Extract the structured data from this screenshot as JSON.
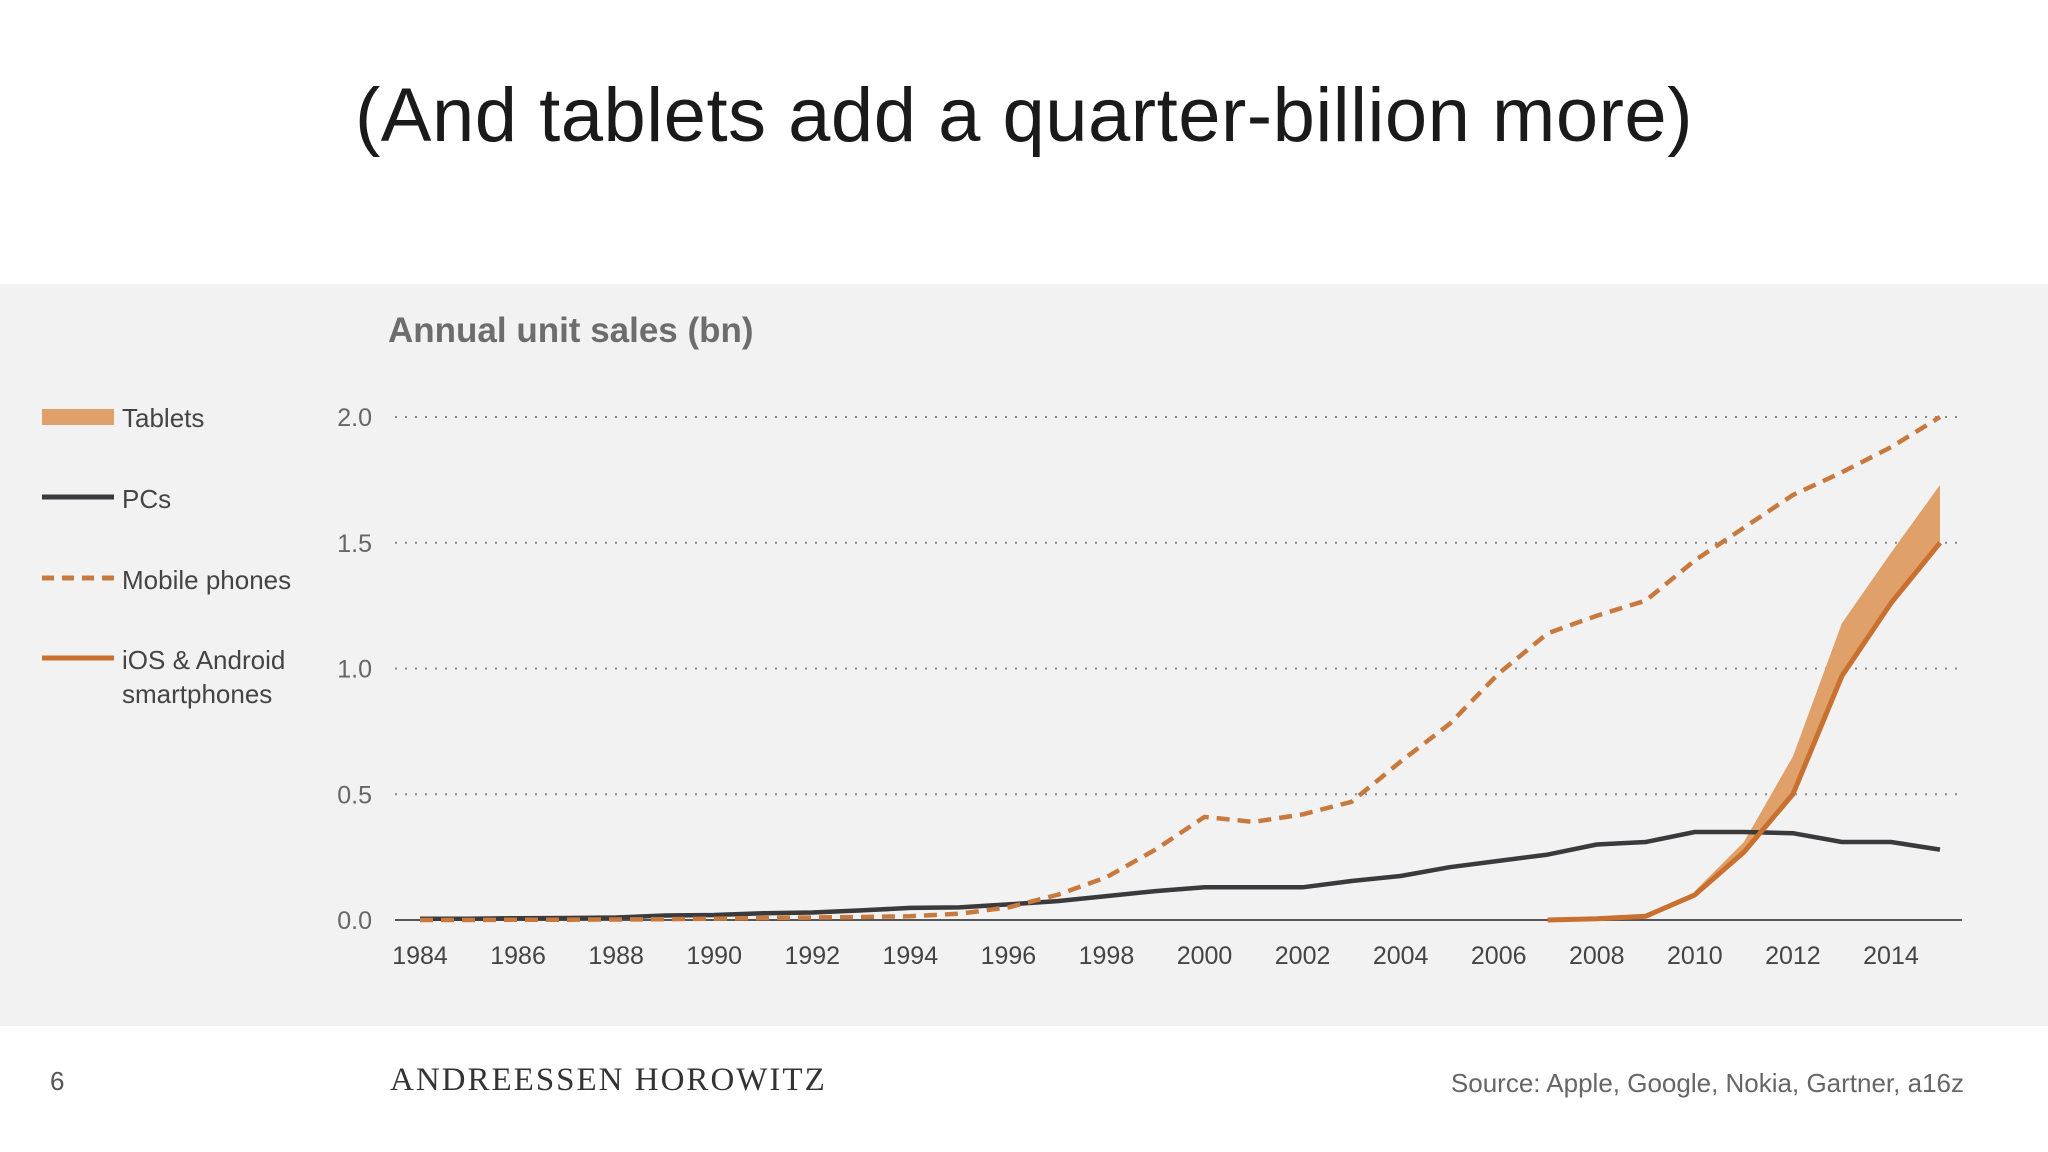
{
  "slide": {
    "title": "(And tablets add a quarter-billion more)",
    "page_number": "6",
    "brand": "ANDREESSEN HOROWITZ",
    "source": "Source: Apple, Google, Nokia, Gartner, a16z"
  },
  "legend": [
    {
      "label": "Tablets",
      "style": "band"
    },
    {
      "label": "PCs",
      "style": "solid"
    },
    {
      "label": "Mobile phones",
      "style": "dashed"
    },
    {
      "label_line1": "iOS & Android",
      "label_line2": "smartphones",
      "style": "solid"
    }
  ],
  "colors": {
    "panel_bg": "#f3f2f2",
    "tablets": "#e0a06a",
    "pcs": "#3a3a3c",
    "mobile": "#c87a3e",
    "smartphones": "#c8702f",
    "grid": "#888888",
    "text": "#444444",
    "title_gray": "#6d6d6d"
  },
  "chart_data": {
    "type": "line",
    "title": "Annual unit sales (bn)",
    "xlabel": "",
    "ylabel": "",
    "xlim": [
      1984,
      2015
    ],
    "ylim": [
      0,
      2.0
    ],
    "yticks": [
      0.0,
      0.5,
      1.0,
      1.5,
      2.0
    ],
    "xticks": [
      1984,
      1986,
      1988,
      1990,
      1992,
      1994,
      1996,
      1998,
      2000,
      2002,
      2004,
      2006,
      2008,
      2010,
      2012,
      2014
    ],
    "grid": "horizontal dotted",
    "legend_position": "left",
    "series": [
      {
        "name": "PCs",
        "style": "solid",
        "x": [
          1984,
          1985,
          1986,
          1987,
          1988,
          1989,
          1990,
          1991,
          1992,
          1993,
          1994,
          1995,
          1996,
          1997,
          1998,
          1999,
          2000,
          2001,
          2002,
          2003,
          2004,
          2005,
          2006,
          2007,
          2008,
          2009,
          2010,
          2011,
          2012,
          2013,
          2014,
          2015
        ],
        "values": [
          0.005,
          0.005,
          0.007,
          0.008,
          0.01,
          0.018,
          0.02,
          0.027,
          0.03,
          0.038,
          0.048,
          0.05,
          0.062,
          0.075,
          0.095,
          0.115,
          0.13,
          0.13,
          0.13,
          0.155,
          0.175,
          0.21,
          0.235,
          0.26,
          0.3,
          0.31,
          0.35,
          0.35,
          0.345,
          0.31,
          0.31,
          0.28
        ]
      },
      {
        "name": "Mobile phones",
        "style": "dashed",
        "x": [
          1984,
          1985,
          1986,
          1987,
          1988,
          1989,
          1990,
          1991,
          1992,
          1993,
          1994,
          1995,
          1996,
          1997,
          1998,
          1999,
          2000,
          2001,
          2002,
          2003,
          2004,
          2005,
          2006,
          2007,
          2008,
          2009,
          2010,
          2011,
          2012,
          2013,
          2014,
          2015
        ],
        "values": [
          0.0,
          0.0,
          0.001,
          0.001,
          0.002,
          0.003,
          0.005,
          0.008,
          0.01,
          0.012,
          0.015,
          0.025,
          0.05,
          0.1,
          0.17,
          0.28,
          0.41,
          0.39,
          0.42,
          0.47,
          0.63,
          0.78,
          0.98,
          1.14,
          1.21,
          1.27,
          1.43,
          1.56,
          1.69,
          1.78,
          1.88,
          2.0
        ]
      },
      {
        "name": "iOS & Android smartphones",
        "style": "solid",
        "x": [
          2007,
          2008,
          2009,
          2010,
          2011,
          2012,
          2013,
          2014,
          2015
        ],
        "values": [
          0.0,
          0.005,
          0.015,
          0.1,
          0.27,
          0.5,
          0.97,
          1.26,
          1.5
        ]
      },
      {
        "name": "Tablets",
        "style": "band",
        "x": [
          2010,
          2011,
          2012,
          2013,
          2014,
          2015
        ],
        "values": [
          0.015,
          0.04,
          0.15,
          0.21,
          0.2,
          0.23
        ]
      }
    ]
  }
}
